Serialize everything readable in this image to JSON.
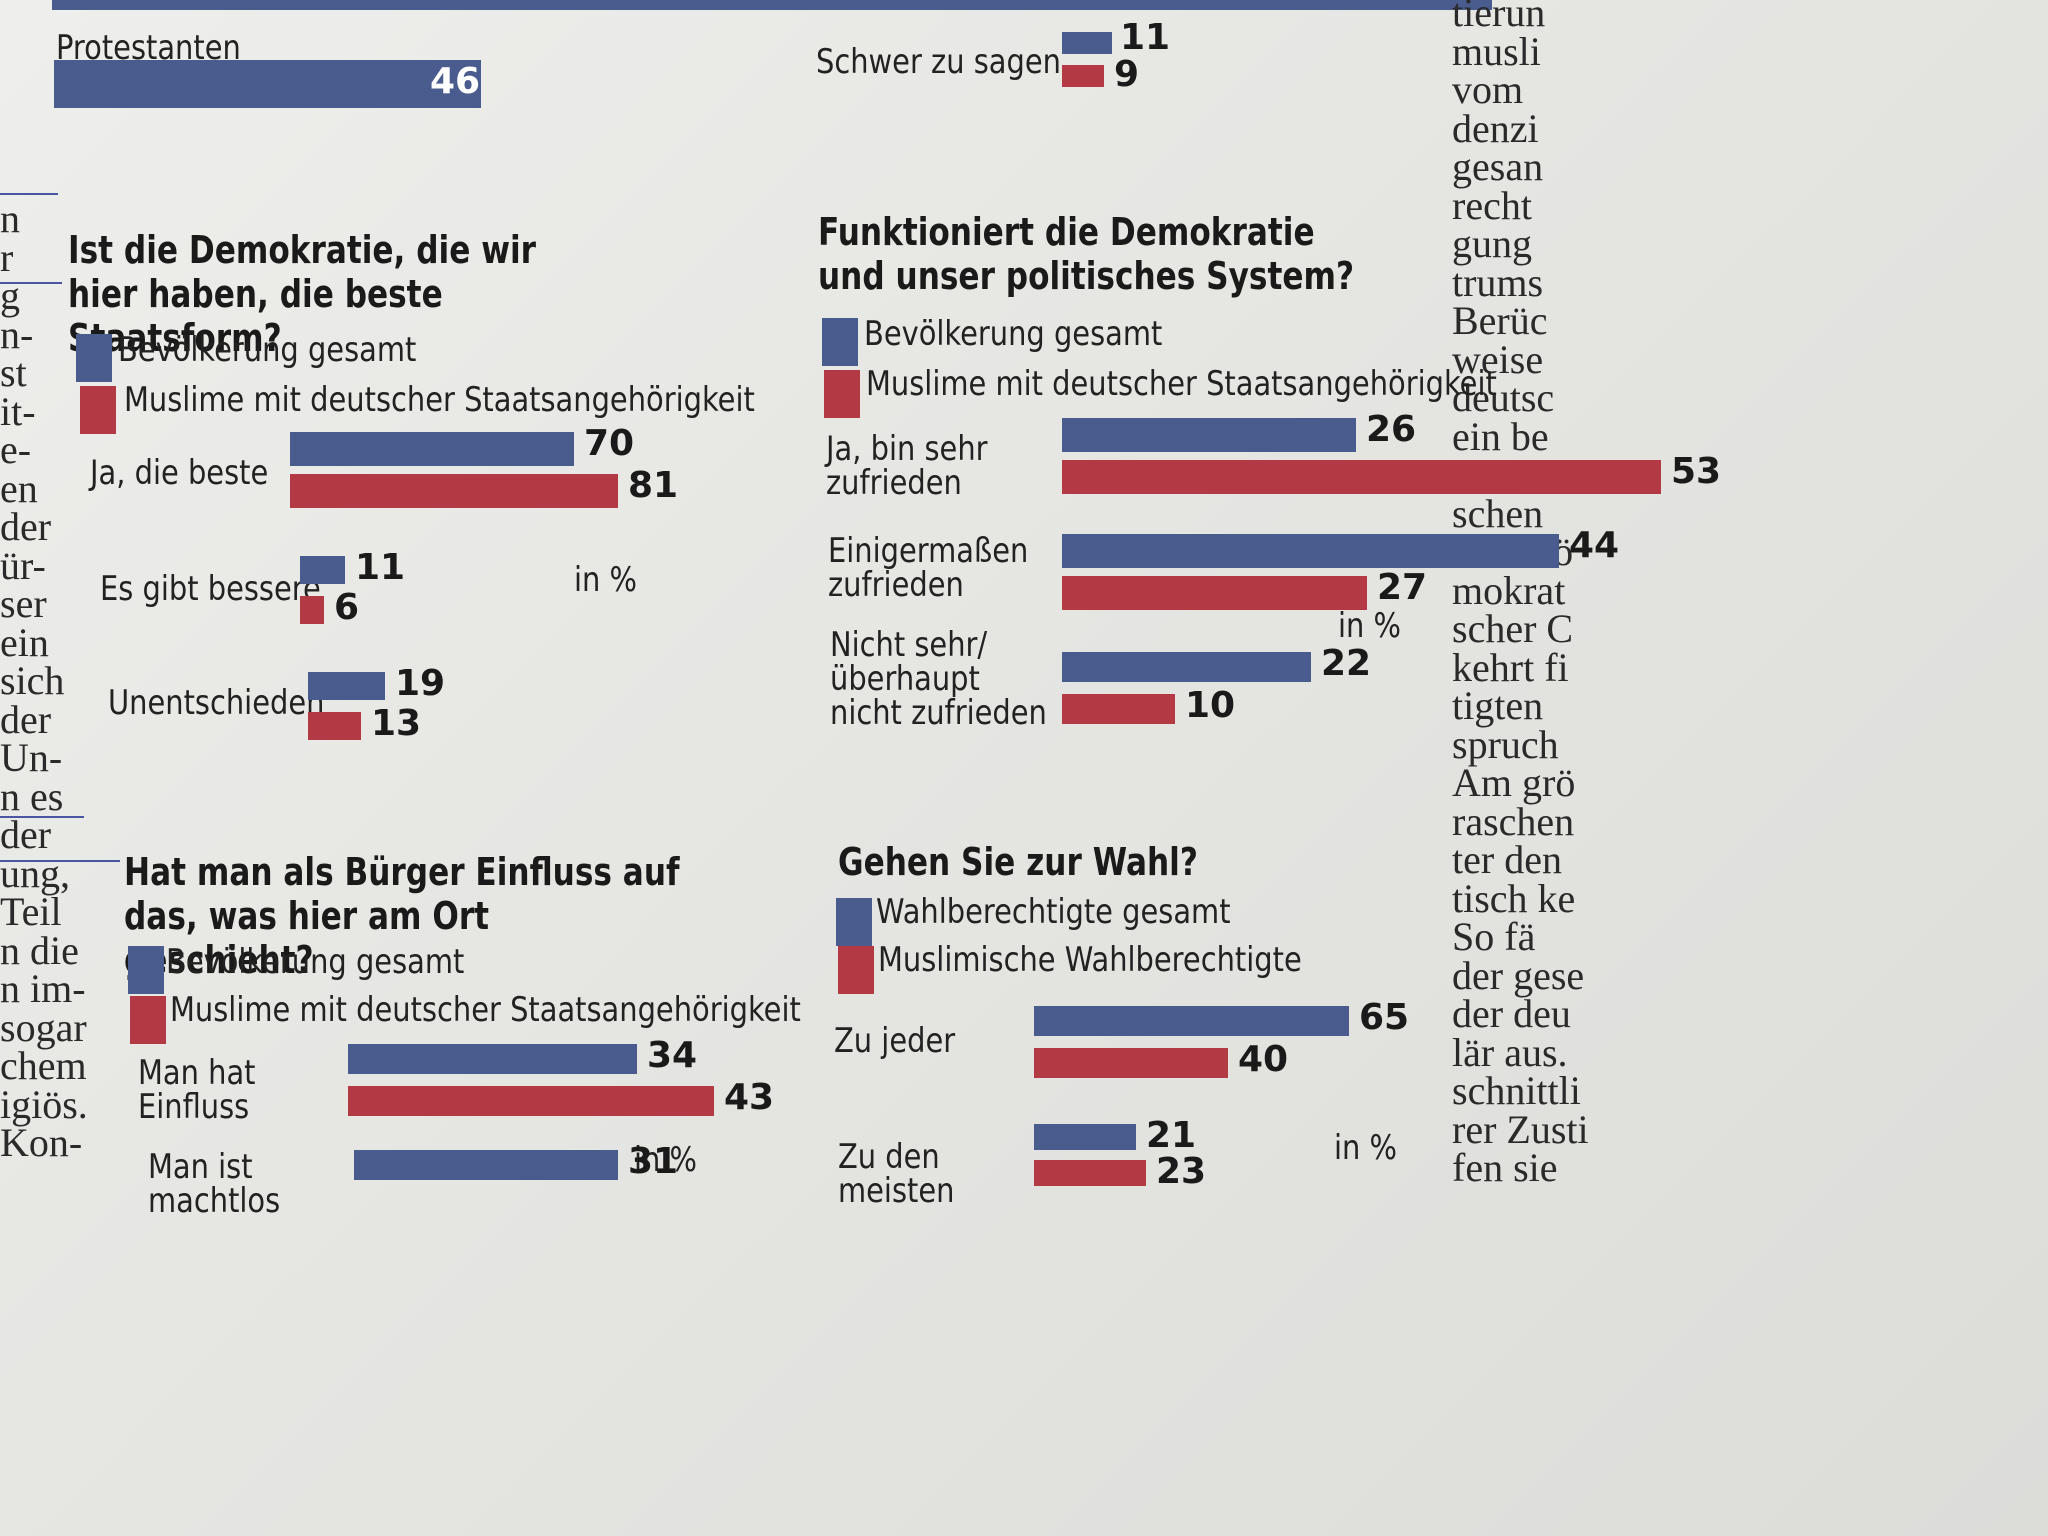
{
  "top": {
    "left_label": "Protestanten",
    "left_value": "46",
    "right_label": "Schwer zu sagen",
    "right_values": [
      "11",
      "9"
    ]
  },
  "colors": {
    "blue": "#4a5b8e",
    "red": "#b33a44"
  },
  "chart_data": [
    {
      "type": "bar",
      "title": "Ist die Demokratie, die wir hier haben, die beste Staatsform?",
      "unit": "in %",
      "categories": [
        "Ja, die beste",
        "Es gibt bessere",
        "Unentschieden"
      ],
      "series": [
        {
          "name": "Bevölkerung gesamt",
          "values": [
            70,
            11,
            19
          ]
        },
        {
          "name": "Muslime mit deutscher Staatsangehörigkeit",
          "values": [
            81,
            6,
            13
          ]
        }
      ]
    },
    {
      "type": "bar",
      "title": "Funktioniert die Demokratie und unser politisches System?",
      "unit": "in %",
      "categories": [
        "Ja, bin sehr zufrieden",
        "Einigermaßen zufrieden",
        "Nicht sehr/ überhaupt nicht zufrieden"
      ],
      "series": [
        {
          "name": "Bevölkerung gesamt",
          "values": [
            26,
            44,
            22
          ]
        },
        {
          "name": "Muslime mit deutscher Staatsangehörigkeit",
          "values": [
            53,
            27,
            10
          ]
        }
      ]
    },
    {
      "type": "bar",
      "title": "Hat man als Bürger Einfluss auf das, was hier am Ort geschieht?",
      "unit": "in %",
      "categories": [
        "Man hat Einfluss",
        "Man ist machtlos"
      ],
      "series": [
        {
          "name": "Bevölkerung gesamt",
          "values": [
            34,
            31
          ]
        },
        {
          "name": "Muslime mit deutscher Staatsangehörigkeit",
          "values": [
            43,
            null
          ]
        }
      ]
    },
    {
      "type": "bar",
      "title": "Gehen Sie zur Wahl?",
      "unit": "in %",
      "categories": [
        "Zu jeder",
        "Zu den meisten"
      ],
      "series": [
        {
          "name": "Wahlberechtigte gesamt",
          "values": [
            65,
            21
          ]
        },
        {
          "name": "Muslimische Wahlberechtigte",
          "values": [
            40,
            23
          ]
        }
      ]
    }
  ],
  "text_left": [
    "n",
    "r",
    "g",
    "n-",
    "st",
    "it-",
    "e-",
    "en",
    "der",
    "ür-",
    "ser",
    "ein",
    "sich",
    "der",
    "Un-",
    "n es",
    "der",
    "ung,",
    "Teil",
    "n die",
    "n im-",
    "sogar",
    "chem",
    "igiös.",
    "Kon-"
  ],
  "text_right": [
    "tierun",
    "musli",
    "vom",
    "denzi",
    "gesan",
    "recht",
    "gung",
    "trums",
    "Berüc",
    "weise",
    "deutsc",
    "ein be",
    "schen",
    "schen",
    "Hier kö",
    "mokrat",
    "scher C",
    "kehrt fi",
    "tigten",
    "spruch",
    "Am grö",
    "raschen",
    "ter den",
    "tisch ke",
    "So fä",
    "der gese",
    "der deu",
    "lär aus.",
    "schnittli",
    "rer Zusti",
    "fen sie"
  ]
}
